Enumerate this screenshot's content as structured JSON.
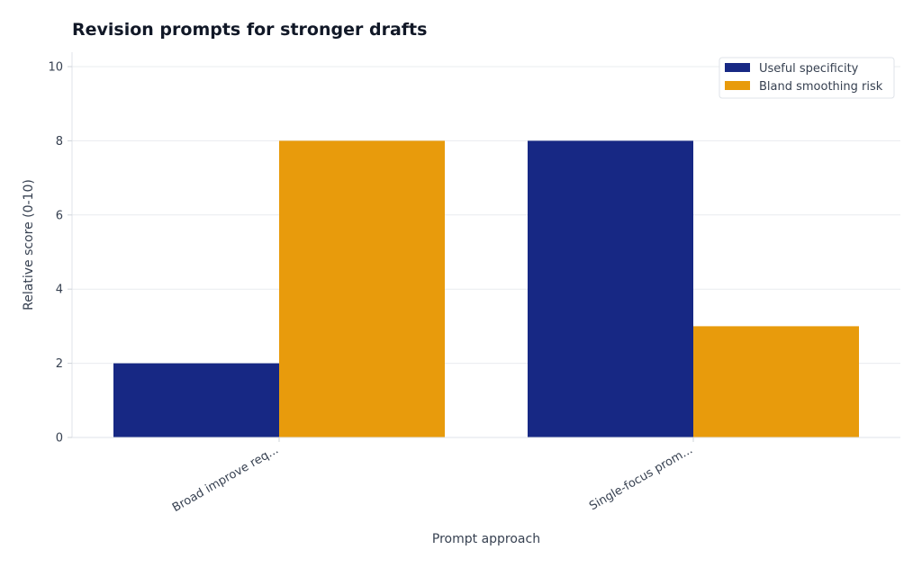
{
  "chart_data": {
    "type": "bar",
    "title": "Revision prompts for stronger drafts",
    "xlabel": "Prompt approach",
    "ylabel": "Relative score (0-10)",
    "categories": [
      "Broad improve req...",
      "Single-focus prom..."
    ],
    "series": [
      {
        "name": "Useful specificity",
        "values": [
          2,
          8
        ],
        "color": "#172884"
      },
      {
        "name": "Bland smoothing risk",
        "values": [
          8,
          3
        ],
        "color": "#E89B0C"
      }
    ],
    "ylim": [
      0,
      10
    ],
    "yticks": [
      0,
      2,
      4,
      6,
      8,
      10
    ],
    "grid": true,
    "legend_position": "top-right"
  }
}
